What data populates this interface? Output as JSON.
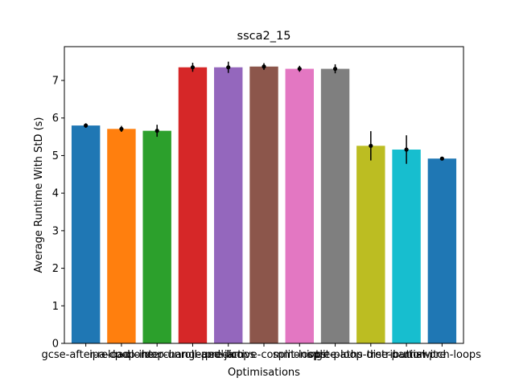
{
  "chart_data": {
    "type": "bar",
    "title": "ssca2_15",
    "xlabel": "Optimisations",
    "ylabel": "Average Runtime With StD (s)",
    "ylim": [
      0,
      7.9
    ],
    "yticks": [
      0,
      1,
      2,
      3,
      4,
      5,
      6,
      7
    ],
    "grid": false,
    "categories": [
      "gcse-after-reload",
      "ipa-cp-clone",
      "loop-interchange",
      "loop-unroll-and-jam",
      "peel-loops",
      "predictive-commoning",
      "split-loops",
      "split-paths",
      "tree-loop-distribution",
      "tree-partial-pre",
      "unswitch-loops"
    ],
    "values": [
      5.8,
      5.71,
      5.66,
      7.35,
      7.35,
      7.37,
      7.31,
      7.31,
      5.26,
      5.16,
      4.92
    ],
    "errors": [
      0.06,
      0.08,
      0.16,
      0.12,
      0.15,
      0.09,
      0.08,
      0.12,
      0.39,
      0.38,
      0.02
    ],
    "colors": [
      "#1f77b4",
      "#ff7f0e",
      "#2ca02c",
      "#d62728",
      "#9467bd",
      "#8c564b",
      "#e377c2",
      "#7f7f7f",
      "#bcbd22",
      "#17becf",
      "#1f77b4"
    ]
  }
}
